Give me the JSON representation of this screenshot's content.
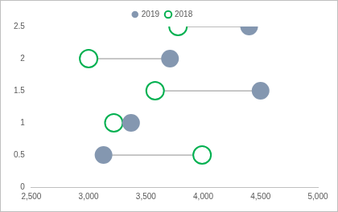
{
  "chart_data": {
    "type": "dumbbell",
    "series": [
      {
        "name": "2019",
        "color": "#8497b0",
        "marker": "circle",
        "x": [
          3130,
          3370,
          4500,
          3710,
          4400
        ],
        "values": [
          0.5,
          1,
          1.5,
          2,
          2.5
        ]
      },
      {
        "name": "2018",
        "color": "#00b050",
        "marker": "open_circle",
        "x": [
          3990,
          3220,
          3580,
          3000,
          3780
        ],
        "values": [
          0.5,
          1,
          1.5,
          2,
          2.5
        ]
      }
    ],
    "xlim": [
      2500,
      5000
    ],
    "xticks": [
      {
        "value": 2500,
        "label": "2,500"
      },
      {
        "value": 3000,
        "label": "3,000"
      },
      {
        "value": 3500,
        "label": "3,500"
      },
      {
        "value": 4000,
        "label": "4,000"
      },
      {
        "value": 4500,
        "label": "4,500"
      },
      {
        "value": 5000,
        "label": "5,000"
      }
    ],
    "ylim": [
      0,
      2.5
    ],
    "yticks": [
      0,
      0.5,
      1,
      1.5,
      2,
      2.5
    ],
    "grid": false,
    "legend": "top"
  }
}
